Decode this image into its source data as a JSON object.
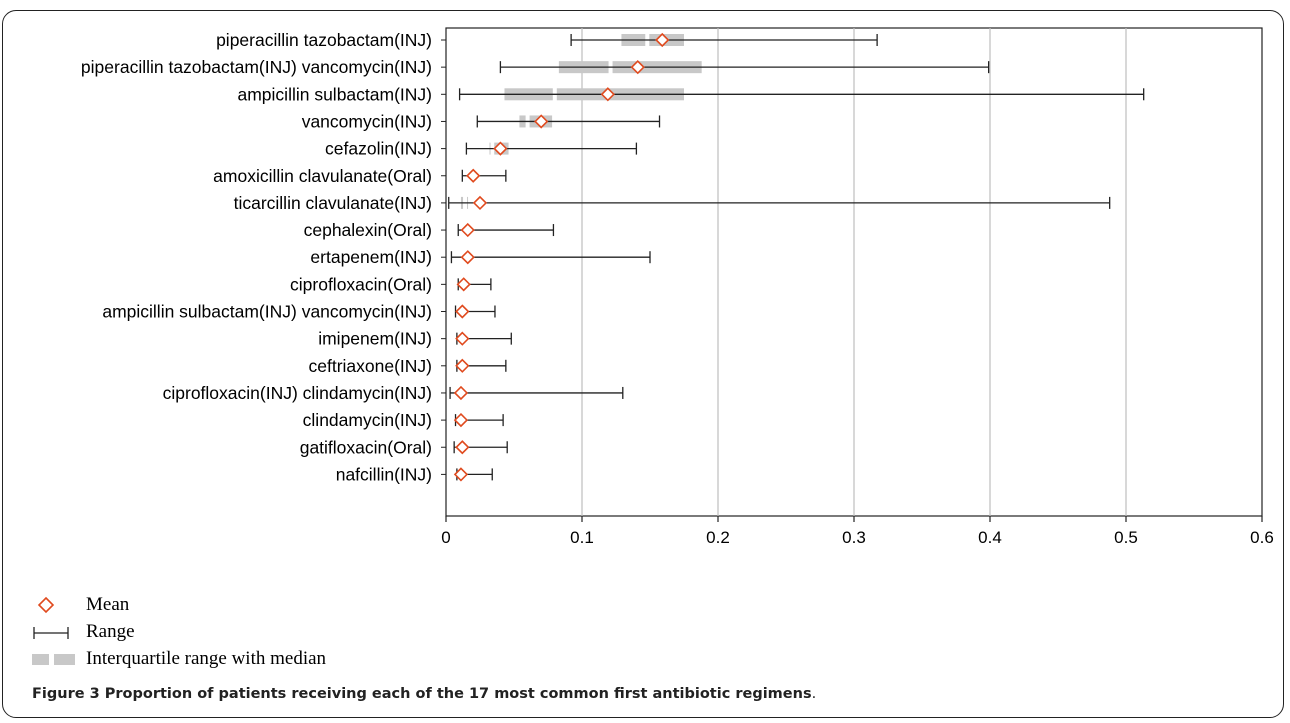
{
  "chart_data": {
    "type": "box",
    "title": "",
    "xlabel": "",
    "ylabel": "",
    "xlim": [
      0,
      0.6
    ],
    "x_ticks": [
      "0",
      "0.1",
      "0.2",
      "0.3",
      "0.4",
      "0.5",
      "0.6"
    ],
    "x_tick_values": [
      0,
      0.1,
      0.2,
      0.3,
      0.4,
      0.5,
      0.6
    ],
    "grid": "vertical",
    "colors": {
      "mean": "#e04a1e",
      "iqr": "#c8c8c8",
      "range": "#222222",
      "grid": "#bdbdbd"
    },
    "categories": [
      "piperacillin tazobactam(INJ)",
      "piperacillin tazobactam(INJ) vancomycin(INJ)",
      "ampicillin sulbactam(INJ)",
      "vancomycin(INJ)",
      "cefazolin(INJ)",
      "amoxicillin clavulanate(Oral)",
      "ticarcillin clavulanate(INJ)",
      "cephalexin(Oral)",
      "ertapenem(INJ)",
      "ciprofloxacin(Oral)",
      "ampicillin sulbactam(INJ) vancomycin(INJ)",
      "imipenem(INJ)",
      "ceftriaxone(INJ)",
      "ciprofloxacin(INJ) clindamycin(INJ)",
      "clindamycin(INJ)",
      "gatifloxacin(Oral)",
      "nafcillin(INJ)"
    ],
    "series": [
      {
        "name": "Mean",
        "values": [
          0.159,
          0.141,
          0.119,
          0.07,
          0.04,
          0.02,
          0.025,
          0.016,
          0.016,
          0.013,
          0.012,
          0.012,
          0.012,
          0.011,
          0.011,
          0.012,
          0.011
        ]
      },
      {
        "name": "Range",
        "min": [
          0.092,
          0.04,
          0.01,
          0.023,
          0.015,
          0.012,
          0.002,
          0.009,
          0.004,
          0.009,
          0.007,
          0.008,
          0.008,
          0.003,
          0.007,
          0.006,
          0.008
        ],
        "max": [
          0.317,
          0.399,
          0.513,
          0.157,
          0.14,
          0.044,
          0.488,
          0.079,
          0.15,
          0.033,
          0.036,
          0.048,
          0.044,
          0.13,
          0.042,
          0.045,
          0.034
        ]
      },
      {
        "name": "Interquartile range with median",
        "q1": [
          0.129,
          0.083,
          0.043,
          0.054,
          0.032,
          null,
          0.011,
          null,
          null,
          null,
          null,
          null,
          null,
          null,
          null,
          null,
          null
        ],
        "median": [
          0.148,
          0.121,
          0.08,
          0.06,
          0.034,
          null,
          0.014,
          null,
          null,
          null,
          null,
          null,
          null,
          null,
          null,
          null,
          null
        ],
        "q3": [
          0.175,
          0.188,
          0.175,
          0.078,
          0.046,
          null,
          0.016,
          null,
          null,
          null,
          null,
          null,
          null,
          null,
          null,
          null,
          null
        ]
      }
    ]
  },
  "legend": {
    "mean": "Mean",
    "range": "Range",
    "iqr": "Interquartile range with median"
  },
  "caption": {
    "bold": "Figure 3 Proportion of patients receiving each of the 17 most common first antibiotic regimens",
    "tail": "."
  }
}
